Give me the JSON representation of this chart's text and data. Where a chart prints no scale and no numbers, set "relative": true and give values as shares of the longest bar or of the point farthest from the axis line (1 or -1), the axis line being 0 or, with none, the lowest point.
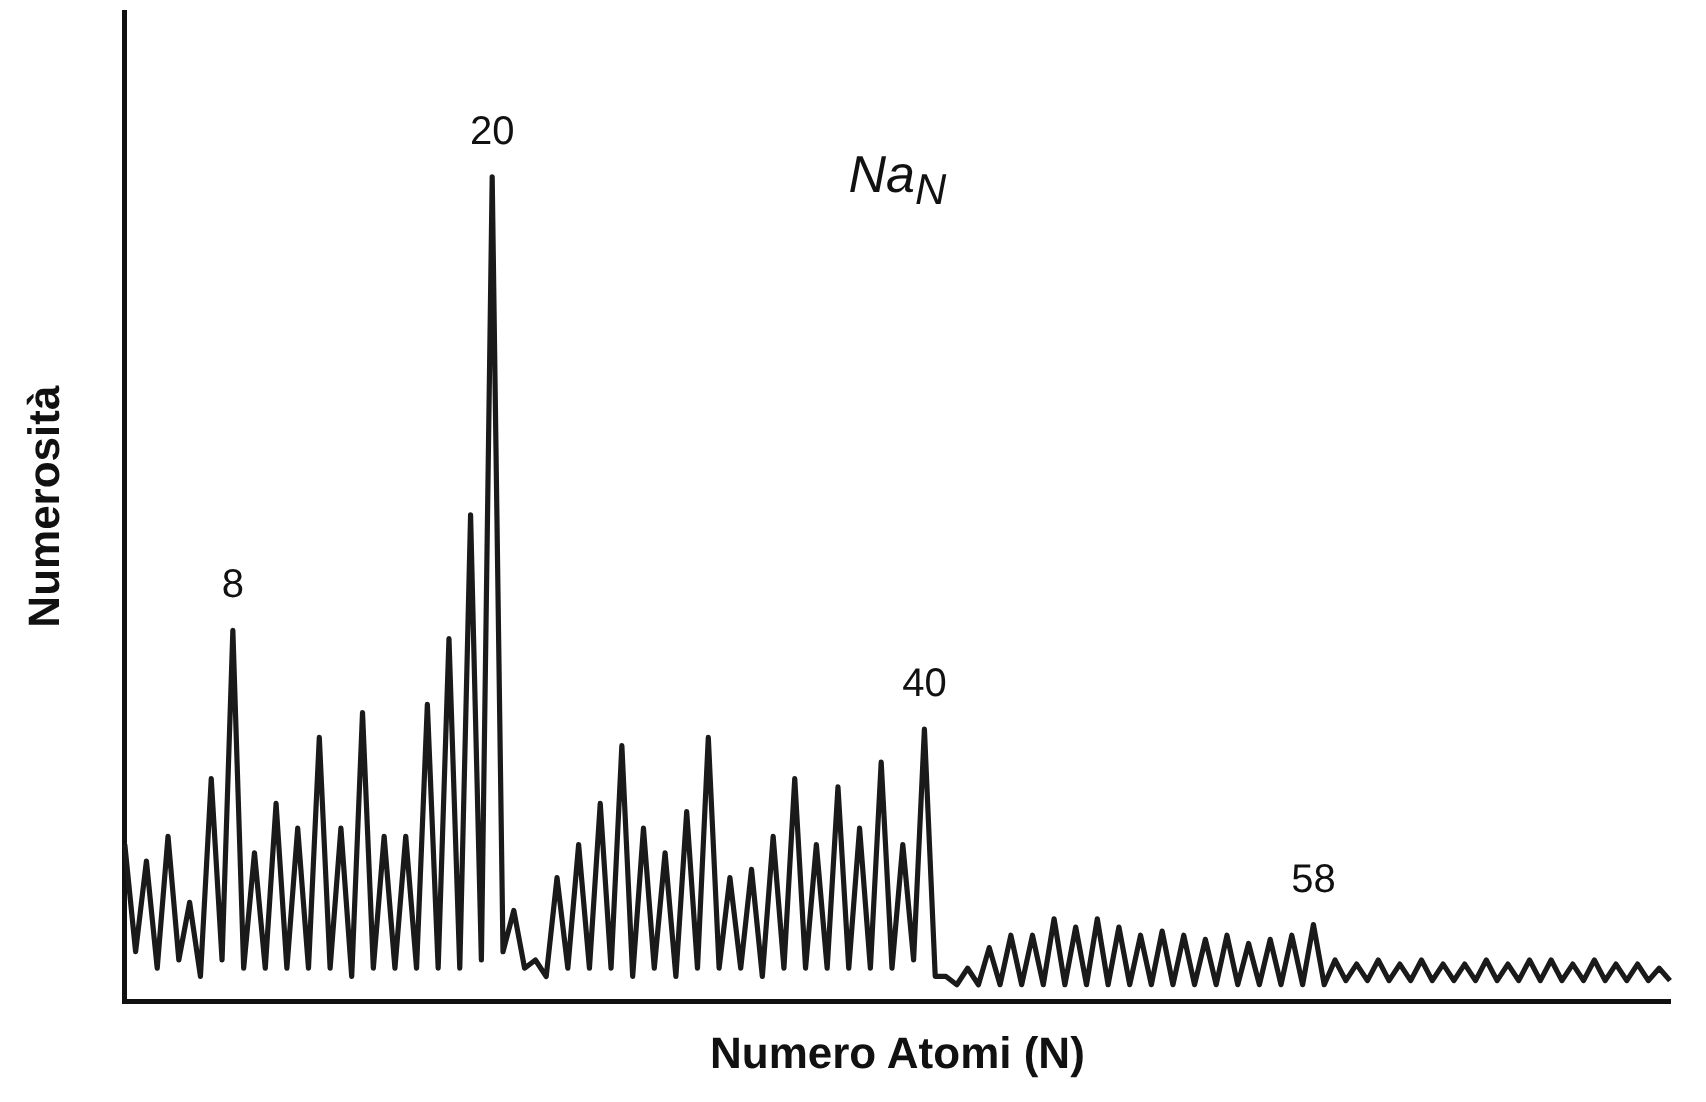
{
  "chart_data": {
    "type": "line",
    "relative": true,
    "xlabel": "Numero Atomi (N)",
    "ylabel": "Numerosità",
    "categories": [
      null,
      null,
      null,
      null,
      null,
      null,
      null,
      null,
      null,
      null,
      null,
      null,
      null,
      null,
      null,
      null,
      null,
      null,
      null,
      null,
      null,
      null,
      null,
      null,
      null,
      null,
      null,
      null,
      null,
      null,
      null,
      null,
      null,
      null,
      null,
      null,
      null,
      null,
      null,
      null,
      null,
      null,
      null,
      null,
      null,
      null,
      null,
      null,
      null,
      null,
      null,
      null,
      null,
      null,
      null,
      null,
      null,
      null,
      null,
      null,
      null,
      null,
      null,
      null,
      null,
      null,
      null,
      null,
      null,
      null,
      null,
      null,
      null,
      null,
      null,
      null,
      null,
      null,
      null,
      null,
      null,
      null,
      null,
      null,
      null,
      null,
      null,
      null,
      null,
      null,
      null,
      null,
      null,
      null,
      null,
      null,
      null,
      null,
      null,
      null,
      null,
      null,
      null,
      null,
      null,
      null,
      null,
      null,
      null,
      null,
      null,
      null,
      null,
      null,
      null,
      null,
      null,
      null,
      null,
      null,
      null,
      null,
      null,
      null,
      null,
      null,
      null,
      null,
      null,
      null,
      null,
      null,
      null,
      null,
      null,
      null,
      null,
      null,
      null,
      null,
      null,
      null,
      null,
      null
    ],
    "tick_labels": false,
    "grid": false,
    "legend": false,
    "marker": "none",
    "line_style": "solid",
    "annotations": [
      {
        "text": "8",
        "y": 0.45
      },
      {
        "text": "20",
        "y": 1
      },
      {
        "text": "40",
        "y": 0.33
      },
      {
        "text": "58",
        "y": 0.093
      },
      "Na$_{N}$"
    ],
    "series": [
      {
        "color": "#1a1a1a",
        "values": [
          0.19,
          0.06,
          0.17,
          0.04,
          0.2,
          0.05,
          0.12,
          0.03,
          0.27,
          0.05,
          0.45,
          0.04,
          0.18,
          0.04,
          0.24,
          0.04,
          0.21,
          0.04,
          0.32,
          0.04,
          0.21,
          0.03,
          0.35,
          0.04,
          0.2,
          0.04,
          0.2,
          0.04,
          0.36,
          0.04,
          0.44,
          0.04,
          0.59,
          0.05,
          1,
          0.06,
          0.11,
          0.04,
          0.05,
          0.03,
          0.15,
          0.04,
          0.19,
          0.04,
          0.24,
          0.04,
          0.31,
          0.03,
          0.21,
          0.04,
          0.18,
          0.03,
          0.23,
          0.04,
          0.32,
          0.04,
          0.15,
          0.04,
          0.16,
          0.03,
          0.2,
          0.04,
          0.27,
          0.04,
          0.19,
          0.04,
          0.26,
          0.04,
          0.21,
          0.04,
          0.29,
          0.04,
          0.19,
          0.05,
          0.33,
          0.03,
          0.03,
          0.02,
          0.04,
          0.02,
          0.065,
          0.02,
          0.08,
          0.02,
          0.08,
          0.02,
          0.1,
          0.02,
          0.09,
          0.02,
          0.1,
          0.02,
          0.09,
          0.02,
          0.08,
          0.02,
          0.085,
          0.02,
          0.08,
          0.02,
          0.075,
          0.02,
          0.08,
          0.02,
          0.07,
          0.02,
          0.075,
          0.02,
          0.08,
          0.02,
          0.093,
          0.02,
          0.05,
          0.025,
          0.045,
          0.025,
          0.05,
          0.025,
          0.045,
          0.025,
          0.05,
          0.025,
          0.045,
          0.025,
          0.045,
          0.025,
          0.05,
          0.025,
          0.045,
          0.025,
          0.05,
          0.025,
          0.05,
          0.025,
          0.045,
          0.025,
          0.05,
          0.025,
          0.045,
          0.025,
          0.045,
          0.025,
          0.04,
          0.025
        ]
      }
    ]
  }
}
